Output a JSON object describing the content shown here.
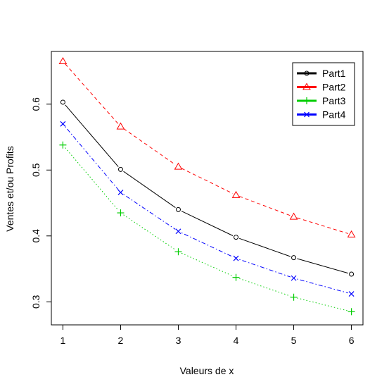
{
  "chart_data": {
    "type": "line",
    "xlabel": "Valeurs de x",
    "ylabel": "Ventes et/ou Profits",
    "x": [
      1,
      2,
      3,
      4,
      5,
      6
    ],
    "xlim": [
      0.8,
      6.2
    ],
    "ylim": [
      0.265,
      0.68
    ],
    "xticks": [
      "1",
      "2",
      "3",
      "4",
      "5",
      "6"
    ],
    "yticks": [
      "0.3",
      "0.4",
      "0.5",
      "0.6"
    ],
    "grid": false,
    "legend_position": "top-right",
    "series": [
      {
        "name": "Part1",
        "color": "#000000",
        "line": "solid",
        "marker": "circle",
        "values": [
          0.603,
          0.501,
          0.44,
          0.398,
          0.367,
          0.342
        ]
      },
      {
        "name": "Part2",
        "color": "#ff0000",
        "line": "dashed",
        "marker": "triangle",
        "values": [
          0.665,
          0.566,
          0.505,
          0.462,
          0.429,
          0.402
        ]
      },
      {
        "name": "Part3",
        "color": "#00cd00",
        "line": "dotted",
        "marker": "plus",
        "values": [
          0.538,
          0.435,
          0.376,
          0.337,
          0.307,
          0.285
        ]
      },
      {
        "name": "Part4",
        "color": "#0000ff",
        "line": "dotdash",
        "marker": "cross",
        "values": [
          0.57,
          0.466,
          0.407,
          0.366,
          0.336,
          0.312
        ]
      }
    ]
  }
}
